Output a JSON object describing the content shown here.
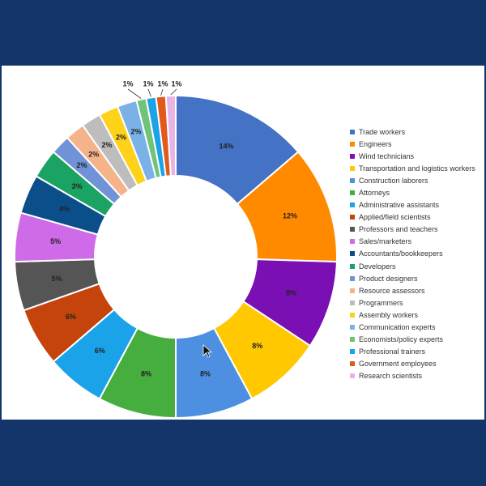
{
  "chart_data": {
    "type": "pie",
    "donut": true,
    "legend_position": "right",
    "categories": [
      "Trade workers",
      "Engineers",
      "Wind technicians",
      "Transportation and logistics workers",
      "Construction laborers",
      "Attorneys",
      "Administrative assistants",
      "Applied/field scientists",
      "Professors and teachers",
      "Sales/marketers",
      "Accountants/bookkeepers",
      "Developers",
      "Product designers",
      "Resource assessors",
      "Programmers",
      "Assembly workers",
      "Communication experts",
      "Economists/policy experts",
      "Professional trainers",
      "Government employees",
      "Research scientists"
    ],
    "values": [
      14,
      12,
      9,
      8,
      8,
      8,
      6,
      6,
      5,
      5,
      4,
      3,
      2,
      2,
      2,
      2,
      2,
      1,
      1,
      1,
      1
    ],
    "labels": [
      "14%",
      "12%",
      "9%",
      "8%",
      "8%",
      "8%",
      "6%",
      "6%",
      "5%",
      "5%",
      "4%",
      "3%",
      "2%",
      "2%",
      "2%",
      "2%",
      "2%",
      "1%",
      "1%",
      "1%",
      "1%"
    ],
    "colors": [
      "#4472c4",
      "#ff8a00",
      "#7a0fb3",
      "#ffc800",
      "#4d8fe0",
      "#46ad3f",
      "#1aa3e8",
      "#c4440c",
      "#555555",
      "#cf6be8",
      "#0a4f8a",
      "#1aa363",
      "#6f93d6",
      "#f5b38a",
      "#bdbdbd",
      "#ffd21a",
      "#7ab2e8",
      "#6fc47a",
      "#1aa3e8",
      "#e05a1a",
      "#e8b4e8"
    ]
  }
}
